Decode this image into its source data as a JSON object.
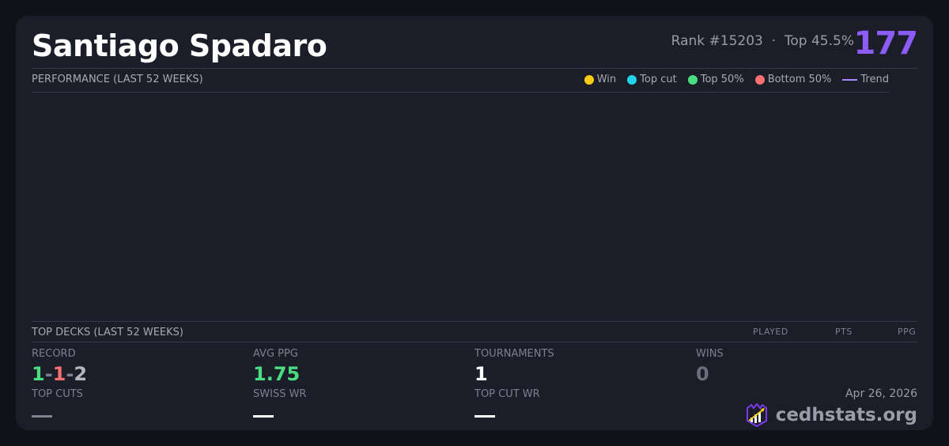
{
  "player": {
    "name": "Santiago Spadaro",
    "rank": "Rank #15203",
    "separator": "·",
    "top_percent": "Top 45.5%",
    "score": "177"
  },
  "performance": {
    "label": "PERFORMANCE (LAST 52 WEEKS)",
    "legend": [
      {
        "label": "Win",
        "color": "#facc15"
      },
      {
        "label": "Top cut",
        "color": "#22d3ee"
      },
      {
        "label": "Top 50%",
        "color": "#4ade80"
      },
      {
        "label": "Bottom 50%",
        "color": "#f87171"
      },
      {
        "label": "Trend",
        "color": "#a78bfa"
      }
    ]
  },
  "top_decks": {
    "label": "TOP DECKS (LAST 52 WEEKS)",
    "columns": [
      "PLAYED",
      "PTS",
      "PPG"
    ]
  },
  "stats": {
    "record": {
      "label": "RECORD",
      "wins": "1",
      "losses": "1",
      "draws": "2",
      "sep": "-"
    },
    "avg_ppg": {
      "label": "AVG PPG",
      "value": "1.75"
    },
    "tournaments": {
      "label": "TOURNAMENTS",
      "value": "1"
    },
    "wins": {
      "label": "WINS",
      "value": "0"
    },
    "top_cuts": {
      "label": "TOP CUTS"
    },
    "swiss_wr": {
      "label": "SWISS WR"
    },
    "top_cut_wr": {
      "label": "TOP CUT WR"
    }
  },
  "footer": {
    "date": "Apr 26, 2026",
    "brand": "cedhstats.org"
  },
  "colors": {
    "accent": "#8b5cf6",
    "win": "#4ade80",
    "loss": "#f87171"
  }
}
